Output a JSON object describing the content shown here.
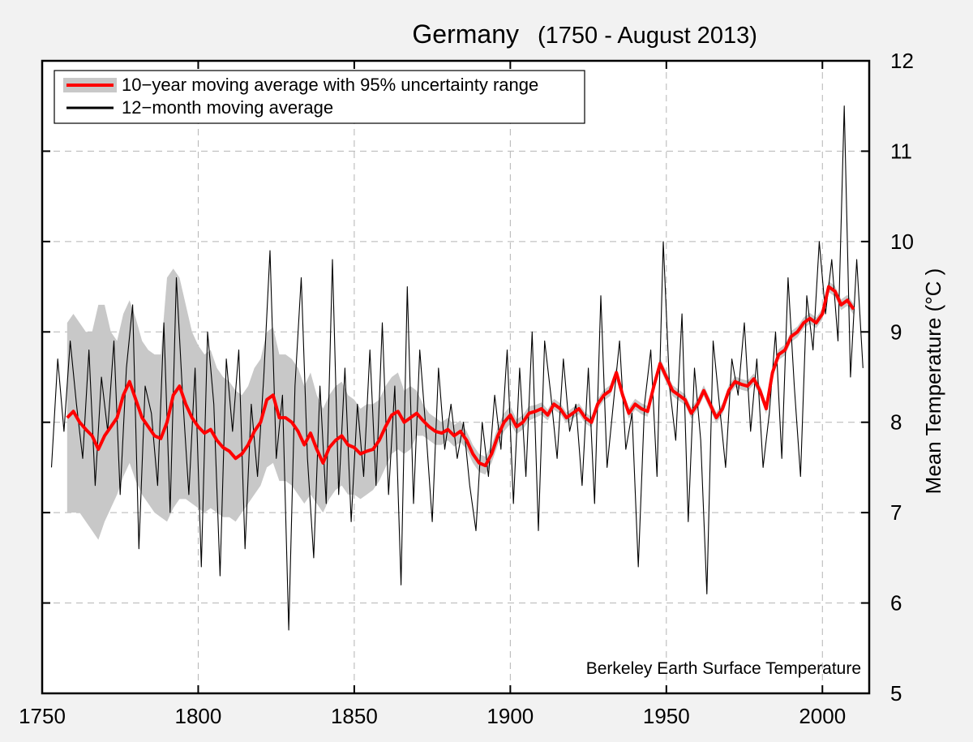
{
  "chart_data": {
    "type": "line",
    "title": "Germany",
    "subtitle": "(1750 - August 2013)",
    "xlabel": "",
    "ylabel": "Mean Temperature (°C )",
    "xlim": [
      1750,
      2015
    ],
    "ylim": [
      5,
      12
    ],
    "x_ticks": [
      "1750",
      "1800",
      "1850",
      "1900",
      "1950",
      "2000"
    ],
    "y_ticks": [
      "5",
      "6",
      "7",
      "8",
      "9",
      "10",
      "11",
      "12"
    ],
    "y_axis_side": "right",
    "grid": true,
    "legend_position": "top-left",
    "annotation": "Berkeley Earth Surface Temperature",
    "colors": {
      "moving10": "#ff0000",
      "uncertainty": "#c8c8c8",
      "moving12": "#000000",
      "grid": "#b4b4b4"
    },
    "series": [
      {
        "name": "12−month moving average",
        "x": [
          1753,
          1755,
          1757,
          1759,
          1761,
          1763,
          1765,
          1767,
          1769,
          1771,
          1773,
          1775,
          1777,
          1779,
          1781,
          1783,
          1785,
          1787,
          1789,
          1791,
          1793,
          1795,
          1797,
          1799,
          1801,
          1803,
          1805,
          1807,
          1809,
          1811,
          1813,
          1815,
          1817,
          1819,
          1821,
          1823,
          1825,
          1827,
          1829,
          1831,
          1833,
          1835,
          1837,
          1839,
          1841,
          1843,
          1845,
          1847,
          1849,
          1851,
          1853,
          1855,
          1857,
          1859,
          1861,
          1863,
          1865,
          1867,
          1869,
          1871,
          1873,
          1875,
          1877,
          1879,
          1881,
          1883,
          1885,
          1887,
          1889,
          1891,
          1893,
          1895,
          1897,
          1899,
          1901,
          1903,
          1905,
          1907,
          1909,
          1911,
          1913,
          1915,
          1917,
          1919,
          1921,
          1923,
          1925,
          1927,
          1929,
          1931,
          1933,
          1935,
          1937,
          1939,
          1941,
          1943,
          1945,
          1947,
          1949,
          1951,
          1953,
          1955,
          1957,
          1959,
          1961,
          1963,
          1965,
          1967,
          1969,
          1971,
          1973,
          1975,
          1977,
          1979,
          1981,
          1983,
          1985,
          1987,
          1989,
          1991,
          1993,
          1995,
          1997,
          1999,
          2001,
          2003,
          2005,
          2007,
          2009,
          2011,
          2013
        ],
        "values": [
          7.5,
          8.7,
          7.9,
          8.9,
          8.2,
          7.6,
          8.8,
          7.3,
          8.5,
          7.9,
          8.9,
          7.2,
          8.6,
          9.3,
          6.6,
          8.4,
          8.1,
          7.3,
          9.1,
          7.0,
          9.6,
          8.3,
          7.2,
          8.6,
          6.4,
          9.0,
          8.2,
          6.3,
          8.7,
          7.9,
          8.8,
          6.6,
          8.2,
          7.4,
          8.5,
          9.9,
          7.6,
          8.3,
          5.7,
          8.4,
          9.6,
          7.6,
          6.5,
          8.4,
          7.1,
          9.8,
          7.2,
          8.6,
          6.9,
          8.2,
          7.4,
          8.8,
          7.3,
          9.1,
          7.2,
          8.4,
          6.2,
          9.5,
          7.1,
          8.8,
          7.9,
          6.9,
          8.6,
          7.7,
          8.2,
          7.6,
          8.0,
          7.3,
          6.8,
          8.0,
          7.4,
          8.3,
          7.7,
          8.8,
          7.1,
          8.6,
          7.4,
          9.0,
          6.8,
          8.9,
          8.3,
          7.6,
          8.7,
          7.9,
          8.2,
          7.3,
          8.6,
          7.1,
          9.4,
          7.5,
          8.2,
          8.9,
          7.7,
          8.1,
          6.4,
          8.2,
          8.8,
          7.4,
          10.0,
          8.4,
          7.8,
          9.2,
          6.9,
          8.6,
          7.8,
          6.1,
          8.9,
          8.2,
          7.5,
          8.7,
          8.3,
          9.1,
          7.9,
          8.7,
          7.5,
          8.1,
          9.0,
          7.6,
          9.6,
          8.4,
          7.4,
          9.4,
          8.8,
          10.0,
          9.2,
          9.8,
          8.9,
          11.5,
          8.5,
          9.8,
          8.6
        ]
      },
      {
        "name": "10−year moving average with 95% uncertainty range",
        "x": [
          1758,
          1760,
          1762,
          1764,
          1766,
          1768,
          1770,
          1772,
          1774,
          1776,
          1778,
          1780,
          1782,
          1784,
          1786,
          1788,
          1790,
          1792,
          1794,
          1796,
          1798,
          1800,
          1802,
          1804,
          1806,
          1808,
          1810,
          1812,
          1814,
          1816,
          1818,
          1820,
          1822,
          1824,
          1826,
          1828,
          1830,
          1832,
          1834,
          1836,
          1838,
          1840,
          1842,
          1844,
          1846,
          1848,
          1850,
          1852,
          1854,
          1856,
          1858,
          1860,
          1862,
          1864,
          1866,
          1868,
          1870,
          1872,
          1874,
          1876,
          1878,
          1880,
          1882,
          1884,
          1886,
          1888,
          1890,
          1892,
          1894,
          1896,
          1898,
          1900,
          1902,
          1904,
          1906,
          1908,
          1910,
          1912,
          1914,
          1916,
          1918,
          1920,
          1922,
          1924,
          1926,
          1928,
          1930,
          1932,
          1934,
          1936,
          1938,
          1940,
          1942,
          1944,
          1946,
          1948,
          1950,
          1952,
          1954,
          1956,
          1958,
          1960,
          1962,
          1964,
          1966,
          1968,
          1970,
          1972,
          1974,
          1976,
          1978,
          1980,
          1982,
          1984,
          1986,
          1988,
          1990,
          1992,
          1994,
          1996,
          1998,
          2000,
          2002,
          2004,
          2006,
          2008,
          2010
        ],
        "values": [
          8.05,
          8.12,
          8.0,
          7.92,
          7.85,
          7.7,
          7.85,
          7.95,
          8.05,
          8.3,
          8.45,
          8.25,
          8.05,
          7.95,
          7.85,
          7.82,
          8.0,
          8.3,
          8.4,
          8.2,
          8.05,
          7.95,
          7.88,
          7.92,
          7.8,
          7.72,
          7.68,
          7.6,
          7.65,
          7.75,
          7.9,
          8.0,
          8.25,
          8.3,
          8.05,
          8.05,
          8.0,
          7.9,
          7.75,
          7.88,
          7.7,
          7.55,
          7.72,
          7.8,
          7.85,
          7.75,
          7.72,
          7.65,
          7.68,
          7.7,
          7.8,
          7.95,
          8.08,
          8.12,
          8.0,
          8.05,
          8.1,
          8.02,
          7.95,
          7.9,
          7.88,
          7.92,
          7.85,
          7.9,
          7.8,
          7.65,
          7.55,
          7.52,
          7.65,
          7.85,
          8.0,
          8.08,
          7.95,
          8.0,
          8.1,
          8.12,
          8.15,
          8.08,
          8.2,
          8.15,
          8.05,
          8.1,
          8.15,
          8.05,
          8.0,
          8.2,
          8.3,
          8.35,
          8.55,
          8.3,
          8.1,
          8.2,
          8.15,
          8.12,
          8.4,
          8.65,
          8.5,
          8.35,
          8.3,
          8.25,
          8.1,
          8.2,
          8.35,
          8.2,
          8.05,
          8.15,
          8.35,
          8.45,
          8.42,
          8.4,
          8.48,
          8.35,
          8.15,
          8.55,
          8.75,
          8.8,
          8.95,
          9.0,
          9.1,
          9.15,
          9.1,
          9.2,
          9.5,
          9.45,
          9.3,
          9.35,
          9.25
        ],
        "lower": [
          7.0,
          7.0,
          7.0,
          6.9,
          6.8,
          6.7,
          6.9,
          7.05,
          7.2,
          7.4,
          7.55,
          7.35,
          7.2,
          7.1,
          7.0,
          6.95,
          6.9,
          7.05,
          7.15,
          7.15,
          7.1,
          7.05,
          7.0,
          7.05,
          7.0,
          6.95,
          6.95,
          6.9,
          7.0,
          7.1,
          7.2,
          7.3,
          7.5,
          7.55,
          7.35,
          7.35,
          7.3,
          7.2,
          7.1,
          7.2,
          7.1,
          7.0,
          7.15,
          7.25,
          7.3,
          7.2,
          7.2,
          7.15,
          7.2,
          7.25,
          7.35,
          7.5,
          7.65,
          7.7,
          7.65,
          7.7,
          7.85,
          7.85,
          7.8,
          7.75,
          7.75,
          7.8,
          7.73,
          7.78,
          7.7,
          7.55,
          7.45,
          7.42,
          7.55,
          7.75,
          7.9,
          7.98,
          7.87,
          7.92,
          8.02,
          8.05,
          8.08,
          8.02,
          8.14,
          8.09,
          7.99,
          8.04,
          8.09,
          7.99,
          7.94,
          8.14,
          8.24,
          8.29,
          8.49,
          8.24,
          8.04,
          8.14,
          8.09,
          8.06,
          8.34,
          8.59,
          8.44,
          8.29,
          8.24,
          8.19,
          8.04,
          8.14,
          8.29,
          8.14,
          7.99,
          8.09,
          8.29,
          8.39,
          8.36,
          8.34,
          8.42,
          8.29,
          8.09,
          8.49,
          8.69,
          8.74,
          8.89,
          8.94,
          9.04,
          9.09,
          9.04,
          9.14,
          9.44,
          9.39,
          9.24,
          9.29,
          9.19
        ],
        "upper": [
          9.1,
          9.2,
          9.1,
          9.0,
          9.0,
          9.3,
          9.3,
          9.0,
          8.9,
          9.2,
          9.35,
          9.15,
          8.9,
          8.8,
          8.75,
          8.75,
          9.6,
          9.7,
          9.6,
          9.3,
          9.0,
          8.85,
          8.75,
          8.8,
          8.6,
          8.5,
          8.45,
          8.35,
          8.3,
          8.4,
          8.6,
          8.7,
          9.0,
          9.05,
          8.75,
          8.75,
          8.7,
          8.6,
          8.4,
          8.55,
          8.3,
          8.15,
          8.3,
          8.4,
          8.45,
          8.3,
          8.25,
          8.15,
          8.2,
          8.2,
          8.25,
          8.4,
          8.5,
          8.55,
          8.35,
          8.4,
          8.35,
          8.2,
          8.1,
          8.05,
          8.0,
          8.05,
          7.97,
          8.02,
          7.9,
          7.75,
          7.65,
          7.62,
          7.75,
          7.95,
          8.1,
          8.18,
          8.03,
          8.08,
          8.18,
          8.19,
          8.22,
          8.14,
          8.26,
          8.21,
          8.11,
          8.16,
          8.21,
          8.11,
          8.06,
          8.26,
          8.36,
          8.41,
          8.61,
          8.36,
          8.16,
          8.26,
          8.21,
          8.18,
          8.46,
          8.71,
          8.56,
          8.41,
          8.36,
          8.31,
          8.16,
          8.26,
          8.41,
          8.26,
          8.11,
          8.21,
          8.41,
          8.51,
          8.48,
          8.46,
          8.54,
          8.41,
          8.21,
          8.61,
          8.81,
          8.86,
          9.01,
          9.06,
          9.16,
          9.21,
          9.16,
          9.26,
          9.56,
          9.51,
          9.36,
          9.41,
          9.31
        ]
      }
    ]
  }
}
